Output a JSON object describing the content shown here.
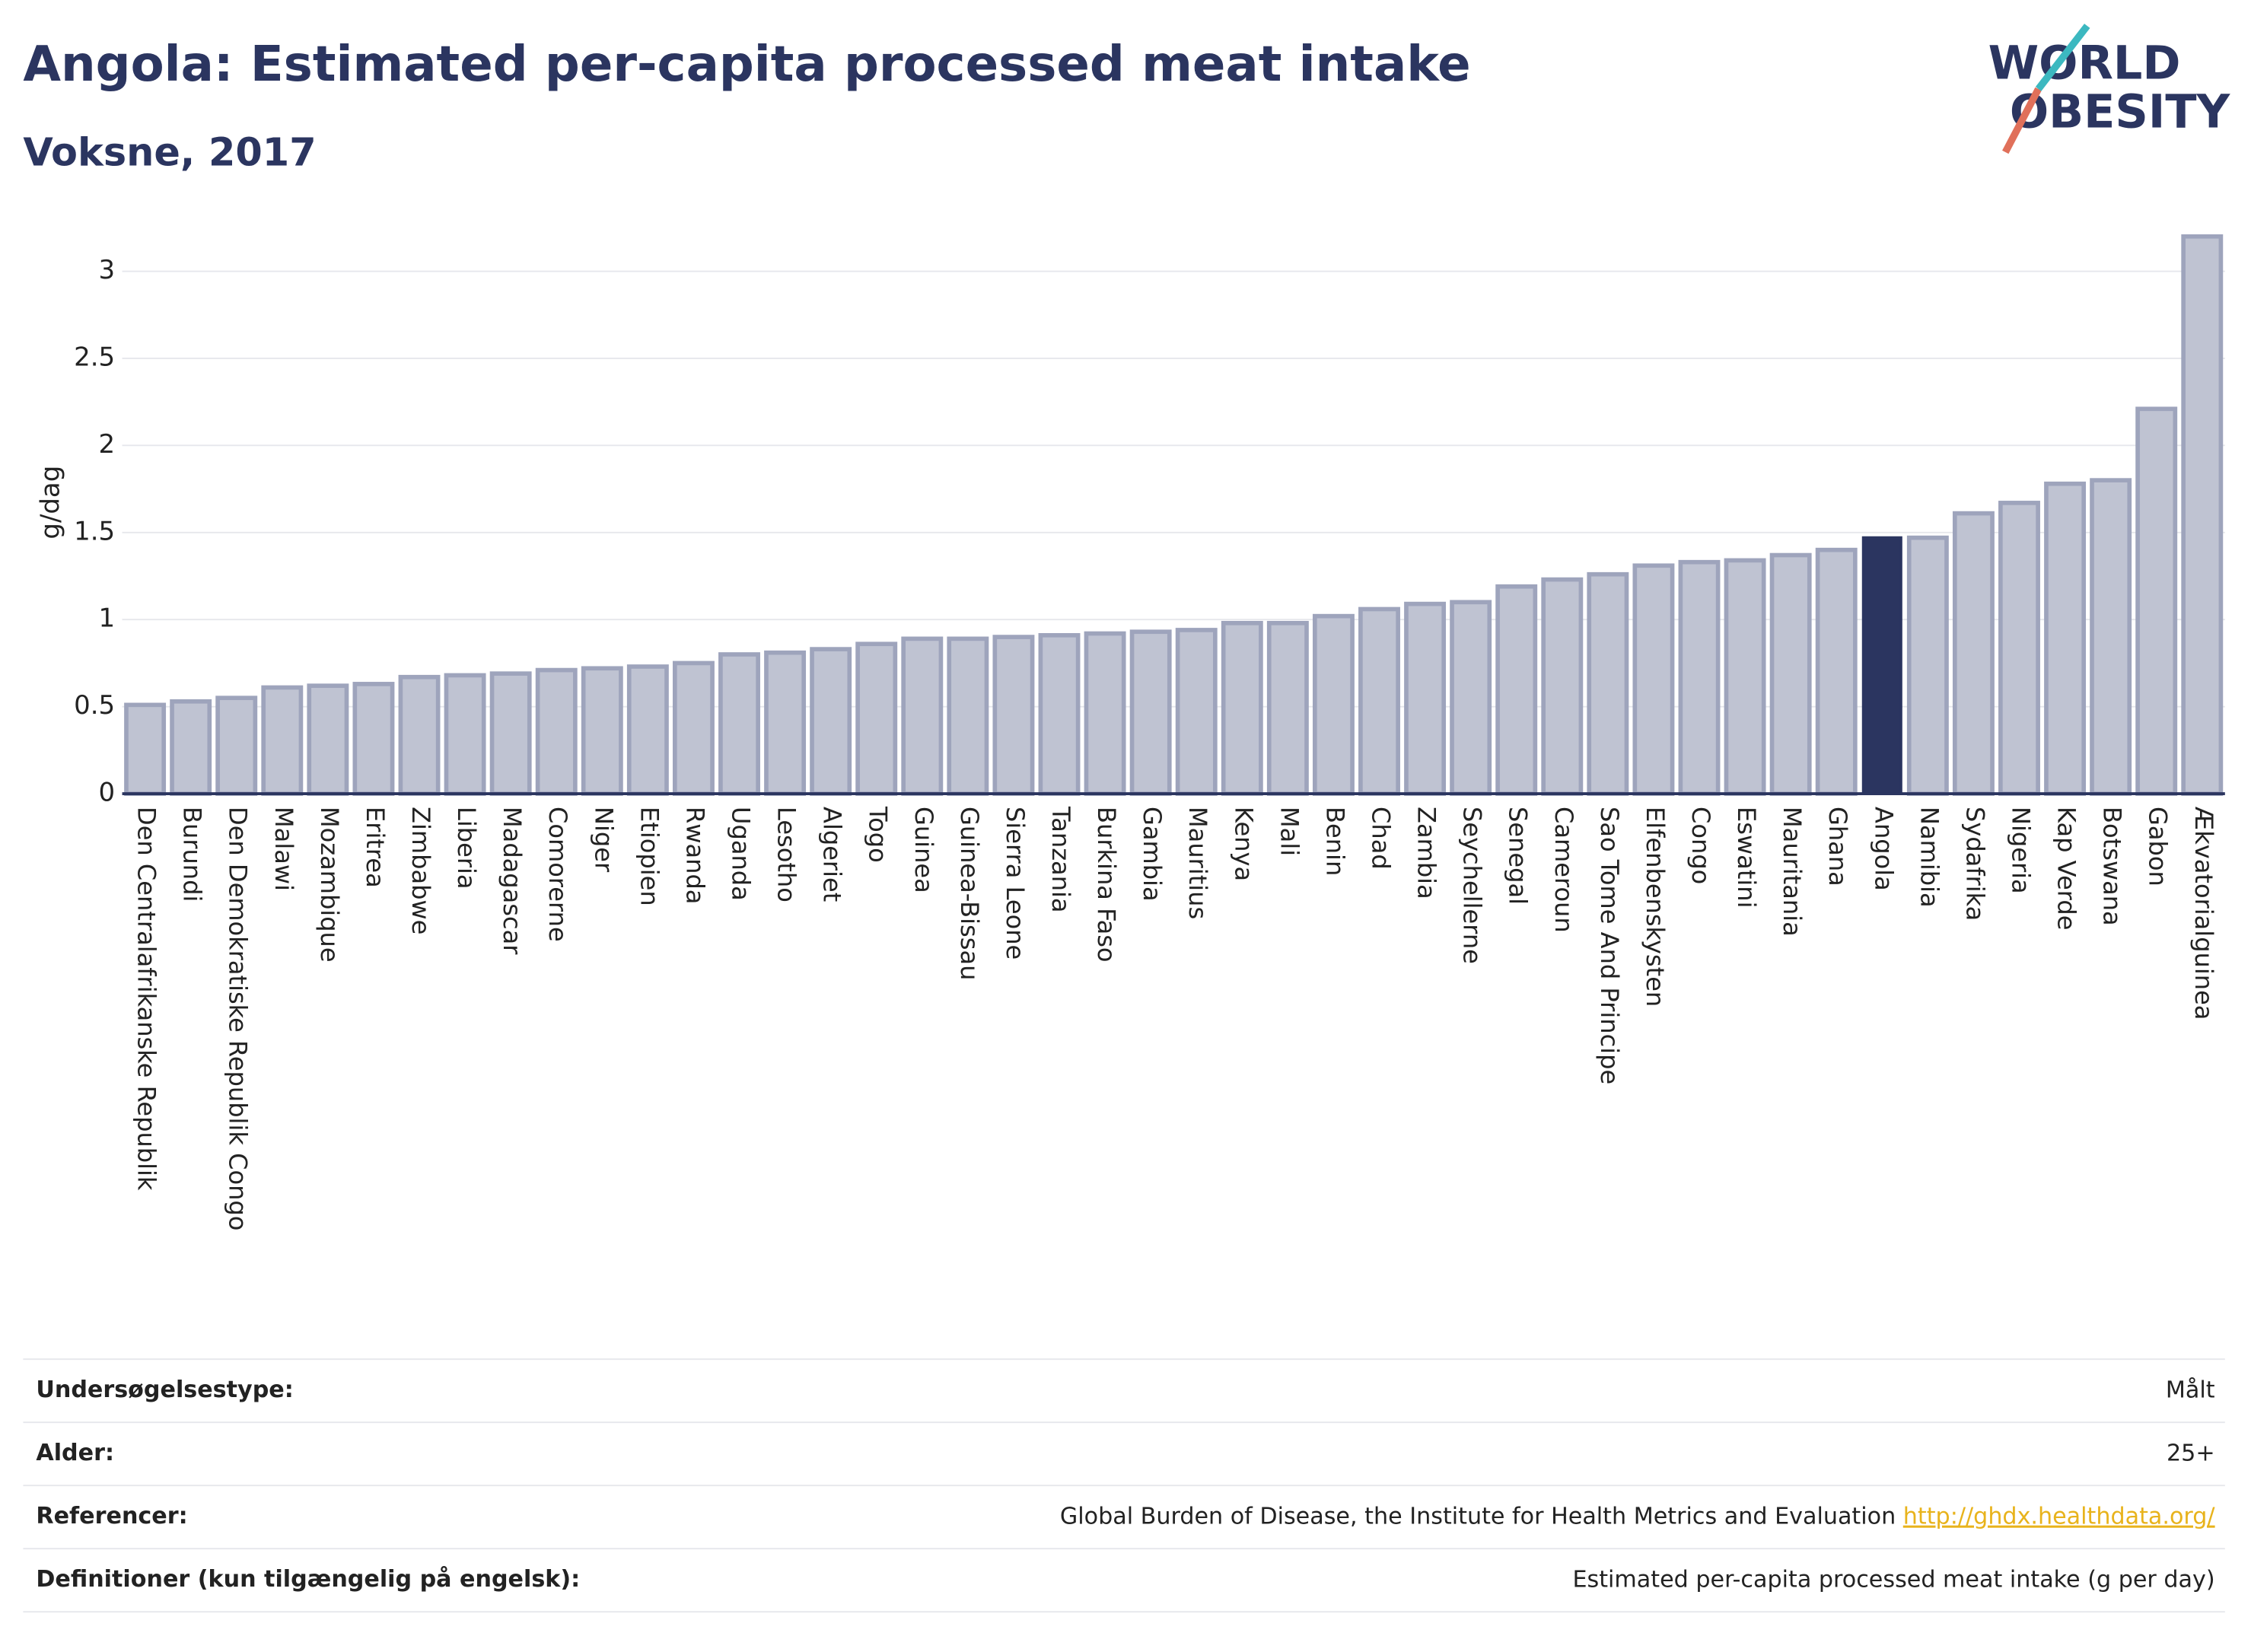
{
  "chart_data": {
    "type": "bar",
    "title": "Angola: Estimated per-capita processed meat intake",
    "subtitle": "Voksne, 2017",
    "y_label": "g/dag",
    "logo": [
      "WORLD",
      "OBESITY"
    ],
    "categories": [
      "Den Centralafrikanske Republik",
      "Burundi",
      "Den Demokratiske Republik Congo",
      "Malawi",
      "Mozambique",
      "Eritrea",
      "Zimbabwe",
      "Liberia",
      "Madagascar",
      "Comorerne",
      "Niger",
      "Etiopien",
      "Rwanda",
      "Uganda",
      "Lesotho",
      "Algeriet",
      "Togo",
      "Guinea",
      "Guinea-Bissau",
      "Sierra Leone",
      "Tanzania",
      "Burkina Faso",
      "Gambia",
      "Mauritius",
      "Kenya",
      "Mali",
      "Benin",
      "Chad",
      "Zambia",
      "Seychellerne",
      "Senegal",
      "Cameroun",
      "Sao Tome And Principe",
      "Elfenbenskysten",
      "Congo",
      "Eswatini",
      "Mauritania",
      "Ghana",
      "Angola",
      "Namibia",
      "Sydafrika",
      "Nigeria",
      "Kap Verde",
      "Botswana",
      "Gabon",
      "Ækvatorialguinea"
    ],
    "values": [
      0.51,
      0.53,
      0.55,
      0.61,
      0.62,
      0.63,
      0.67,
      0.68,
      0.69,
      0.71,
      0.72,
      0.73,
      0.75,
      0.8,
      0.81,
      0.83,
      0.86,
      0.89,
      0.89,
      0.9,
      0.91,
      0.92,
      0.93,
      0.94,
      0.98,
      0.98,
      1.02,
      1.06,
      1.09,
      1.1,
      1.19,
      1.23,
      1.26,
      1.31,
      1.33,
      1.34,
      1.37,
      1.4,
      1.47,
      1.47,
      1.61,
      1.67,
      1.78,
      1.8,
      2.21,
      3.2
    ],
    "color": "#bfc3d2",
    "edge_color": "#9ea4bc",
    "highlight": "Angola",
    "highlight_color": "#2b3560",
    "ylim": [
      0,
      3.3
    ],
    "yticks": [
      0,
      0.5,
      1,
      1.5,
      2,
      2.5,
      3
    ],
    "grid": true
  },
  "table": {
    "rows": [
      {
        "label": "Undersøgelsestype:",
        "value": "Målt"
      },
      {
        "label": "Alder:",
        "value": "25+"
      },
      {
        "label": "Referencer:",
        "value": "Global Burden of Disease, the Institute for Health Metrics and Evaluation",
        "link": "http://ghdx.healthdata.org/"
      },
      {
        "label": "Definitioner (kun tilgængelig på engelsk):",
        "value": "Estimated per-capita processed meat intake (g per day)"
      }
    ]
  }
}
